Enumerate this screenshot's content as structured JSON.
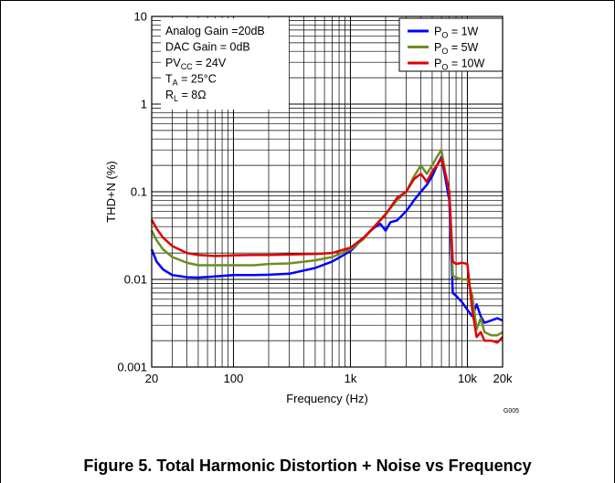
{
  "chart_data": {
    "type": "line",
    "title": "",
    "xlabel": "Frequency (Hz)",
    "ylabel": "THD+N (%)",
    "xscale": "log",
    "yscale": "log",
    "xlim": [
      20,
      20000
    ],
    "ylim": [
      0.001,
      10
    ],
    "x_tick_labels": [
      "20",
      "100",
      "1k",
      "10k",
      "20k"
    ],
    "x_tick_values": [
      20,
      100,
      1000,
      10000,
      20000
    ],
    "y_tick_labels": [
      "0.001",
      "0.01",
      "0.1",
      "1",
      "10"
    ],
    "y_tick_values": [
      0.001,
      0.01,
      0.1,
      1,
      10
    ],
    "grid": true,
    "legend_position": "top-right",
    "figure_id": "G005",
    "conditions": [
      {
        "main": "Analog Gain =20dB",
        "sub": "",
        "rest": ""
      },
      {
        "main": "DAC Gain = 0dB",
        "sub": "",
        "rest": ""
      },
      {
        "main": "PV",
        "sub": "CC",
        "rest": " = 24V"
      },
      {
        "main": "T",
        "sub": "A",
        "rest": " = 25°C"
      },
      {
        "main": "R",
        "sub": "L",
        "rest": " = 8Ω"
      }
    ],
    "series": [
      {
        "name": "P",
        "name_sub": "O",
        "name_rest": " = 1W",
        "color": "#0000ff",
        "points": [
          [
            20,
            0.022
          ],
          [
            22,
            0.016
          ],
          [
            25,
            0.013
          ],
          [
            30,
            0.0112
          ],
          [
            40,
            0.0106
          ],
          [
            50,
            0.0105
          ],
          [
            70,
            0.0108
          ],
          [
            100,
            0.0112
          ],
          [
            150,
            0.0112
          ],
          [
            200,
            0.0113
          ],
          [
            300,
            0.0116
          ],
          [
            500,
            0.0135
          ],
          [
            700,
            0.016
          ],
          [
            1000,
            0.021
          ],
          [
            1300,
            0.03
          ],
          [
            1600,
            0.039
          ],
          [
            1800,
            0.043
          ],
          [
            2000,
            0.036
          ],
          [
            2200,
            0.045
          ],
          [
            2500,
            0.047
          ],
          [
            3000,
            0.06
          ],
          [
            3500,
            0.08
          ],
          [
            4000,
            0.1
          ],
          [
            4500,
            0.12
          ],
          [
            5000,
            0.15
          ],
          [
            5500,
            0.2
          ],
          [
            6000,
            0.25
          ],
          [
            6500,
            0.14
          ],
          [
            7000,
            0.08
          ],
          [
            7500,
            0.007
          ],
          [
            8000,
            0.0065
          ],
          [
            9000,
            0.0055
          ],
          [
            10000,
            0.0045
          ],
          [
            11000,
            0.0038
          ],
          [
            12000,
            0.0052
          ],
          [
            13000,
            0.0038
          ],
          [
            14000,
            0.0032
          ],
          [
            16000,
            0.0034
          ],
          [
            18000,
            0.0036
          ],
          [
            20000,
            0.0034
          ]
        ]
      },
      {
        "name": "P",
        "name_sub": "O",
        "name_rest": " = 5W",
        "color": "#6b8e23",
        "points": [
          [
            20,
            0.036
          ],
          [
            22,
            0.028
          ],
          [
            25,
            0.022
          ],
          [
            30,
            0.018
          ],
          [
            40,
            0.0155
          ],
          [
            50,
            0.0145
          ],
          [
            70,
            0.0145
          ],
          [
            100,
            0.0145
          ],
          [
            150,
            0.0145
          ],
          [
            200,
            0.015
          ],
          [
            300,
            0.0152
          ],
          [
            500,
            0.0165
          ],
          [
            700,
            0.018
          ],
          [
            1000,
            0.022
          ],
          [
            1300,
            0.029
          ],
          [
            1600,
            0.04
          ],
          [
            2000,
            0.056
          ],
          [
            2500,
            0.08
          ],
          [
            3000,
            0.1
          ],
          [
            3500,
            0.15
          ],
          [
            4000,
            0.2
          ],
          [
            4500,
            0.16
          ],
          [
            5000,
            0.2
          ],
          [
            5500,
            0.25
          ],
          [
            6000,
            0.3
          ],
          [
            6500,
            0.16
          ],
          [
            7000,
            0.1
          ],
          [
            7500,
            0.011
          ],
          [
            8000,
            0.0105
          ],
          [
            9000,
            0.01
          ],
          [
            10000,
            0.01
          ],
          [
            11000,
            0.0065
          ],
          [
            12000,
            0.0027
          ],
          [
            13000,
            0.0036
          ],
          [
            14000,
            0.0025
          ],
          [
            16000,
            0.0023
          ],
          [
            18000,
            0.0023
          ],
          [
            20000,
            0.0025
          ]
        ]
      },
      {
        "name": "P",
        "name_sub": "O",
        "name_rest": " = 10W",
        "color": "#e00000",
        "points": [
          [
            20,
            0.048
          ],
          [
            22,
            0.038
          ],
          [
            25,
            0.03
          ],
          [
            30,
            0.024
          ],
          [
            40,
            0.02
          ],
          [
            50,
            0.019
          ],
          [
            70,
            0.0185
          ],
          [
            100,
            0.0188
          ],
          [
            150,
            0.019
          ],
          [
            200,
            0.019
          ],
          [
            300,
            0.0192
          ],
          [
            500,
            0.0195
          ],
          [
            700,
            0.02
          ],
          [
            1000,
            0.023
          ],
          [
            1300,
            0.03
          ],
          [
            1600,
            0.04
          ],
          [
            2000,
            0.055
          ],
          [
            2500,
            0.085
          ],
          [
            3000,
            0.1
          ],
          [
            3500,
            0.14
          ],
          [
            4000,
            0.16
          ],
          [
            4500,
            0.13
          ],
          [
            5000,
            0.17
          ],
          [
            5500,
            0.2
          ],
          [
            6000,
            0.24
          ],
          [
            6500,
            0.16
          ],
          [
            7000,
            0.1
          ],
          [
            7500,
            0.016
          ],
          [
            8000,
            0.015
          ],
          [
            9000,
            0.0155
          ],
          [
            10000,
            0.015
          ],
          [
            11000,
            0.0045
          ],
          [
            12000,
            0.0022
          ],
          [
            13000,
            0.0025
          ],
          [
            14000,
            0.002
          ],
          [
            16000,
            0.002
          ],
          [
            18000,
            0.0019
          ],
          [
            20000,
            0.0022
          ]
        ]
      }
    ]
  },
  "caption": "Figure 5. Total Harmonic Distortion + Noise vs Frequency"
}
